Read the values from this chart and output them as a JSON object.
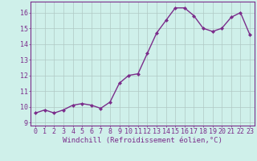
{
  "x": [
    0,
    1,
    2,
    3,
    4,
    5,
    6,
    7,
    8,
    9,
    10,
    11,
    12,
    13,
    14,
    15,
    16,
    17,
    18,
    19,
    20,
    21,
    22,
    23
  ],
  "y": [
    9.6,
    9.8,
    9.6,
    9.8,
    10.1,
    10.2,
    10.1,
    9.9,
    10.3,
    11.5,
    12.0,
    12.1,
    13.4,
    14.7,
    15.5,
    16.3,
    16.3,
    15.8,
    15.0,
    14.8,
    15.0,
    15.7,
    16.0,
    14.6
  ],
  "line_color": "#7b2d8b",
  "marker": "D",
  "marker_size": 2.0,
  "bg_color": "#cff0ea",
  "grid_color": "#b0c8c4",
  "xlabel": "Windchill (Refroidissement éolien,°C)",
  "xlim": [
    -0.5,
    23.5
  ],
  "ylim": [
    8.8,
    16.7
  ],
  "yticks": [
    9,
    10,
    11,
    12,
    13,
    14,
    15,
    16
  ],
  "xticks": [
    0,
    1,
    2,
    3,
    4,
    5,
    6,
    7,
    8,
    9,
    10,
    11,
    12,
    13,
    14,
    15,
    16,
    17,
    18,
    19,
    20,
    21,
    22,
    23
  ],
  "line_color_hex": "#7b2d8b",
  "tick_label_color": "#7b2d8b",
  "xlabel_color": "#7b2d8b",
  "spine_color": "#7b2d8b",
  "line_width": 1.0,
  "xlabel_fontsize": 6.5,
  "tick_fontsize": 6.0
}
